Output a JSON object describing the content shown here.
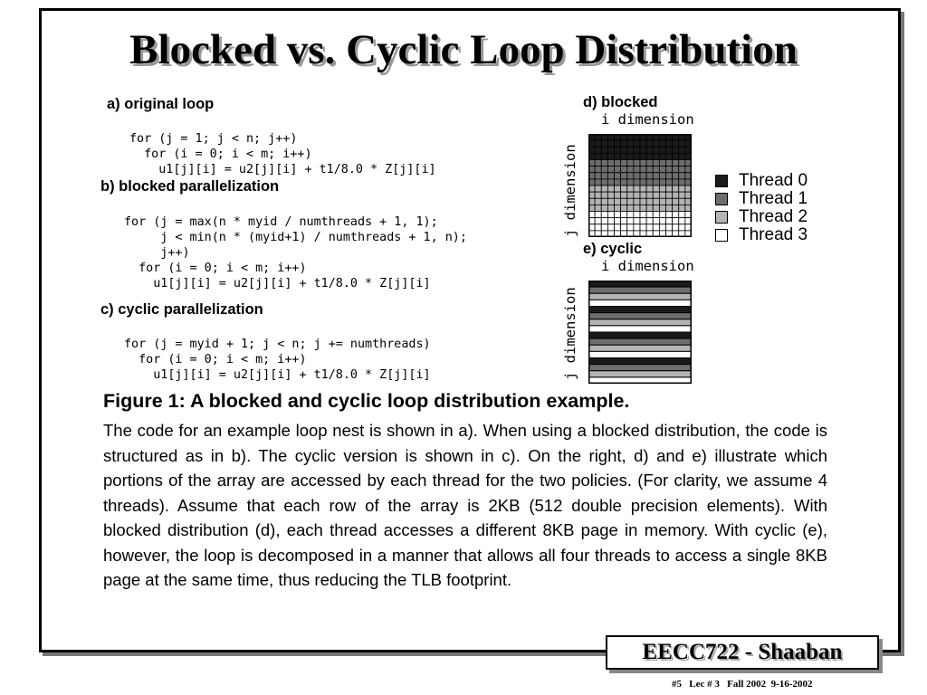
{
  "slide": {
    "title": "Blocked vs.  Cyclic Loop Distribution",
    "section_a": {
      "heading": "a) original loop",
      "code": [
        "for (j = 1; j < n; j++)",
        "  for (i = 0; i < m; i++)",
        "    u1[j][i] = u2[j][i] + t1/8.0 * Z[j][i]"
      ]
    },
    "section_b": {
      "heading": "b) blocked parallelization",
      "code": [
        "for (j = max(n * myid / numthreads + 1, 1);",
        "     j < min(n * (myid+1) / numthreads + 1, n);",
        "     j++)",
        "  for (i = 0; i < m; i++)",
        "    u1[j][i] = u2[j][i] + t1/8.0 * Z[j][i]"
      ]
    },
    "section_c": {
      "heading": "c) cyclic parallelization",
      "code": [
        "for (j = myid + 1; j < n; j += numthreads)",
        "  for (i = 0; i < m; i++)",
        "    u1[j][i] = u2[j][i] + t1/8.0 * Z[j][i]"
      ]
    },
    "diagram_d": {
      "heading": "d) blocked",
      "i_label": "i dimension",
      "j_label": "j dimension",
      "rows": 16,
      "cols": 16,
      "pattern": "blocked"
    },
    "diagram_e": {
      "heading": "e) cyclic",
      "i_label": "i dimension",
      "j_label": "j dimension",
      "rows": 16,
      "pattern": "cyclic"
    },
    "legend": [
      {
        "label": "Thread 0",
        "color": "#1a1a1a"
      },
      {
        "label": "Thread 1",
        "color": "#6e6e6e"
      },
      {
        "label": "Thread 2",
        "color": "#b4b4b4"
      },
      {
        "label": "Thread 3",
        "color": "#ffffff"
      }
    ],
    "figure": {
      "caption": "Figure 1: A blocked and cyclic loop distribution example.",
      "body": "The code for an example loop nest is shown in a). When using a blocked distribution, the code is structured as in b). The cyclic version is shown in c). On the right, d) and e) illustrate which portions of the array are accessed by each thread for the two policies. (For clarity, we assume 4 threads). Assume that each row of the array is 2KB (512 double precision elements). With blocked distribution (d), each thread accesses a different 8KB page in memory. With cyclic (e), however, the loop is decomposed in a manner that allows all four threads to access a single 8KB page at the same time, thus reducing the TLB footprint."
    },
    "course_label": "EECC722 - Shaaban",
    "footer": "#5   Lec # 3   Fall 2002  9-16-2002"
  }
}
